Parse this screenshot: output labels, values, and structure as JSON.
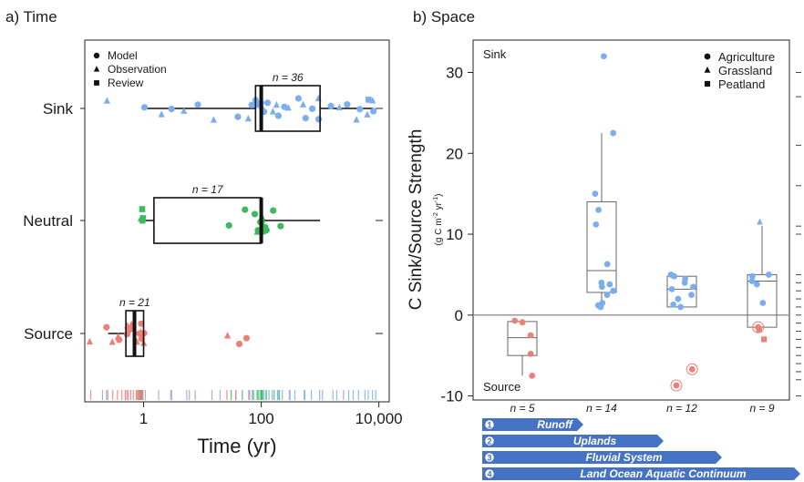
{
  "colors": {
    "sink": "#7aaef0",
    "neutral": "#3cba5c",
    "source": "#ee7f77",
    "rug_other": "#b9a6d8",
    "scale_bar": "#4472c4"
  },
  "panels": {
    "a_title": "a) Time",
    "b_title": "b) Space"
  },
  "chart_data": [
    {
      "type": "box",
      "title": "a) Time",
      "xlabel": "Time (yr)",
      "ylabel": "",
      "xscale": "log",
      "xlim": [
        0.1,
        15000
      ],
      "xticks": [
        1,
        100,
        10000
      ],
      "xtick_labels": [
        "1",
        "100",
        "10,000"
      ],
      "categories": [
        "Sink",
        "Neutral",
        "Source"
      ],
      "legend": {
        "placement": "top-left",
        "entries": [
          {
            "label": "Model",
            "shape": "circle"
          },
          {
            "label": "Observation",
            "shape": "triangle"
          },
          {
            "label": "Review",
            "shape": "square"
          }
        ]
      },
      "groups": [
        {
          "name": "Sink",
          "color": "sink",
          "n_label": "n = 36",
          "box": {
            "q1": 80,
            "median": 100,
            "q3": 1000,
            "whisker_low": 1,
            "whisker_high": 8000
          },
          "points": [
            {
              "x": 0.25,
              "s": "t"
            },
            {
              "x": 1,
              "s": "c"
            },
            {
              "x": 2,
              "s": "t"
            },
            {
              "x": 3,
              "s": "c"
            },
            {
              "x": 5,
              "s": "t"
            },
            {
              "x": 8,
              "s": "c"
            },
            {
              "x": 15,
              "s": "t"
            },
            {
              "x": 40,
              "s": "c"
            },
            {
              "x": 60,
              "s": "t"
            },
            {
              "x": 80,
              "s": "c"
            },
            {
              "x": 90,
              "s": "c"
            },
            {
              "x": 100,
              "s": "t"
            },
            {
              "x": 110,
              "s": "c"
            },
            {
              "x": 130,
              "s": "c"
            },
            {
              "x": 150,
              "s": "t"
            },
            {
              "x": 200,
              "s": "c"
            },
            {
              "x": 250,
              "s": "c"
            },
            {
              "x": 300,
              "s": "t"
            },
            {
              "x": 400,
              "s": "c"
            },
            {
              "x": 500,
              "s": "t"
            },
            {
              "x": 700,
              "s": "c"
            },
            {
              "x": 900,
              "s": "c"
            },
            {
              "x": 1000,
              "s": "t"
            },
            {
              "x": 1500,
              "s": "c"
            },
            {
              "x": 2000,
              "s": "t"
            },
            {
              "x": 3000,
              "s": "c"
            },
            {
              "x": 4000,
              "s": "t"
            },
            {
              "x": 5000,
              "s": "c"
            },
            {
              "x": 6000,
              "s": "t"
            },
            {
              "x": 7000,
              "s": "s"
            },
            {
              "x": 8000,
              "s": "t"
            },
            {
              "x": 8000,
              "s": "c"
            },
            {
              "x": 70,
              "s": "c"
            },
            {
              "x": 100,
              "s": "c"
            },
            {
              "x": 180,
              "s": "t"
            },
            {
              "x": 600,
              "s": "c"
            }
          ]
        },
        {
          "name": "Neutral",
          "color": "neutral",
          "n_label": "n = 17",
          "box": {
            "q1": 1.5,
            "median": 100,
            "q3": 100,
            "whisker_low": 1,
            "whisker_high": 1000
          },
          "points": [
            {
              "x": 0.9,
              "s": "s"
            },
            {
              "x": 0.95,
              "s": "s"
            },
            {
              "x": 1,
              "s": "s"
            },
            {
              "x": 0.9,
              "s": "t"
            },
            {
              "x": 30,
              "s": "c"
            },
            {
              "x": 50,
              "s": "c"
            },
            {
              "x": 80,
              "s": "c"
            },
            {
              "x": 90,
              "s": "c"
            },
            {
              "x": 95,
              "s": "c"
            },
            {
              "x": 100,
              "s": "c"
            },
            {
              "x": 110,
              "s": "c"
            },
            {
              "x": 120,
              "s": "c"
            },
            {
              "x": 150,
              "s": "c"
            },
            {
              "x": 200,
              "s": "c"
            },
            {
              "x": 90,
              "s": "t"
            },
            {
              "x": 100,
              "s": "t"
            },
            {
              "x": 130,
              "s": "c"
            }
          ]
        },
        {
          "name": "Source",
          "color": "source",
          "n_label": "n = 21",
          "box": {
            "q1": 0.5,
            "median": 0.7,
            "q3": 1,
            "whisker_low": 0.25,
            "whisker_high": 1
          },
          "points": [
            {
              "x": 0.12,
              "s": "t"
            },
            {
              "x": 0.25,
              "s": "c"
            },
            {
              "x": 0.3,
              "s": "t"
            },
            {
              "x": 0.35,
              "s": "t"
            },
            {
              "x": 0.4,
              "s": "c"
            },
            {
              "x": 0.5,
              "s": "t"
            },
            {
              "x": 0.55,
              "s": "c"
            },
            {
              "x": 0.6,
              "s": "t"
            },
            {
              "x": 0.7,
              "s": "c"
            },
            {
              "x": 0.75,
              "s": "t"
            },
            {
              "x": 0.8,
              "s": "c"
            },
            {
              "x": 0.9,
              "s": "c"
            },
            {
              "x": 1,
              "s": "t"
            },
            {
              "x": 1,
              "s": "c"
            },
            {
              "x": 0.65,
              "s": "c"
            },
            {
              "x": 25,
              "s": "t"
            },
            {
              "x": 40,
              "s": "c"
            },
            {
              "x": 60,
              "s": "c"
            },
            {
              "x": 0.5,
              "s": "c"
            },
            {
              "x": 0.85,
              "s": "t"
            },
            {
              "x": 0.95,
              "s": "c"
            }
          ]
        }
      ]
    },
    {
      "type": "box",
      "title": "b) Space",
      "xlabel": "",
      "ylabel": "C Sink/Source Strength",
      "ylabel_units": "(g C m",
      "ylabel_units_exp": "-2",
      "ylabel_units_tail": " yr",
      "ylabel_units_exp2": "-1",
      "ylabel_units_close": ")",
      "ylim": [
        -10.5,
        34
      ],
      "yticks": [
        -10,
        0,
        10,
        20,
        30
      ],
      "corner_labels": {
        "top": "Sink",
        "bottom": "Source"
      },
      "legend": {
        "placement": "top-right",
        "entries": [
          {
            "label": "Agriculture",
            "shape": "circle"
          },
          {
            "label": "Grassland",
            "shape": "triangle"
          },
          {
            "label": "Peatland",
            "shape": "square"
          }
        ]
      },
      "groups": [
        {
          "n_label": "n = 5",
          "box": {
            "q1": -5,
            "median": -2.8,
            "q3": -0.8,
            "whisker_low": -7.5,
            "whisker_high": -0.5
          },
          "points": [
            {
              "y": -0.7,
              "s": "c",
              "c": "source"
            },
            {
              "y": -0.9,
              "s": "c",
              "c": "source"
            },
            {
              "y": -2.5,
              "s": "c",
              "c": "source"
            },
            {
              "y": -4.8,
              "s": "c",
              "c": "source"
            },
            {
              "y": -7.5,
              "s": "c",
              "c": "source"
            }
          ]
        },
        {
          "n_label": "n = 14",
          "box": {
            "q1": 2.8,
            "median": 5.5,
            "q3": 14,
            "whisker_low": 1,
            "whisker_high": 22.5
          },
          "points": [
            {
              "y": 32,
              "s": "c",
              "c": "sink"
            },
            {
              "y": 22.5,
              "s": "c",
              "c": "sink"
            },
            {
              "y": 15,
              "s": "c",
              "c": "sink"
            },
            {
              "y": 13,
              "s": "c",
              "c": "sink"
            },
            {
              "y": 11.2,
              "s": "c",
              "c": "sink"
            },
            {
              "y": 6.3,
              "s": "c",
              "c": "sink"
            },
            {
              "y": 4,
              "s": "c",
              "c": "sink"
            },
            {
              "y": 3.5,
              "s": "c",
              "c": "sink"
            },
            {
              "y": 3,
              "s": "c",
              "c": "sink"
            },
            {
              "y": 2.5,
              "s": "c",
              "c": "sink"
            },
            {
              "y": 1.5,
              "s": "c",
              "c": "sink"
            },
            {
              "y": 1,
              "s": "c",
              "c": "sink"
            },
            {
              "y": 3.8,
              "s": "c",
              "c": "sink"
            },
            {
              "y": 1.2,
              "s": "c",
              "c": "sink"
            }
          ]
        },
        {
          "n_label": "n = 12",
          "box": {
            "q1": 1,
            "median": 3.2,
            "q3": 4.8,
            "whisker_low": 1,
            "whisker_high": 4.8
          },
          "points": [
            {
              "y": 5,
              "s": "c",
              "c": "sink"
            },
            {
              "y": 4.8,
              "s": "c",
              "c": "sink"
            },
            {
              "y": 4.5,
              "s": "c",
              "c": "sink"
            },
            {
              "y": 3.2,
              "s": "c",
              "c": "sink"
            },
            {
              "y": 2.5,
              "s": "c",
              "c": "sink"
            },
            {
              "y": 2,
              "s": "c",
              "c": "sink"
            },
            {
              "y": 1.3,
              "s": "c",
              "c": "sink"
            },
            {
              "y": 1,
              "s": "c",
              "c": "sink"
            },
            {
              "y": 3.5,
              "s": "c",
              "c": "sink"
            },
            {
              "y": 4,
              "s": "c",
              "c": "sink"
            },
            {
              "y": -6.7,
              "s": "c",
              "c": "source",
              "ring": true
            },
            {
              "y": -8.7,
              "s": "c",
              "c": "source",
              "ring": true
            }
          ]
        },
        {
          "n_label": "n = 9",
          "box": {
            "q1": -1.5,
            "median": 4.2,
            "q3": 5,
            "whisker_low": -1.5,
            "whisker_high": 11
          },
          "points": [
            {
              "y": 11.5,
              "s": "t",
              "c": "sink"
            },
            {
              "y": 5,
              "s": "c",
              "c": "sink"
            },
            {
              "y": 4.8,
              "s": "c",
              "c": "sink"
            },
            {
              "y": 4.2,
              "s": "c",
              "c": "sink"
            },
            {
              "y": 3.8,
              "s": "c",
              "c": "sink"
            },
            {
              "y": 1.5,
              "s": "c",
              "c": "sink"
            },
            {
              "y": -1.5,
              "s": "c",
              "c": "source",
              "ring": true
            },
            {
              "y": -1.8,
              "s": "s",
              "c": "source"
            },
            {
              "y": -3,
              "s": "s",
              "c": "source"
            }
          ]
        }
      ]
    }
  ],
  "scale_bars": [
    {
      "num": "1",
      "label": "Runoff"
    },
    {
      "num": "2",
      "label": "Uplands"
    },
    {
      "num": "3",
      "label": "Fluvial  System"
    },
    {
      "num": "4",
      "label": "Land Ocean Aquatic Continuum"
    }
  ]
}
